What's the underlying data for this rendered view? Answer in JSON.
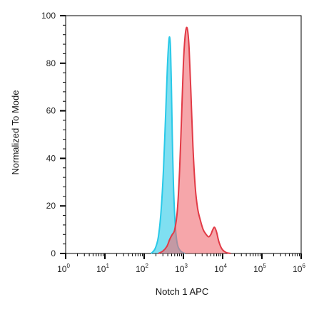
{
  "chart_data": {
    "type": "area",
    "title": "",
    "xlabel": "Notch 1 APC",
    "ylabel": "Normalized To Mode",
    "xscale": "log",
    "xlim": [
      1,
      1000000
    ],
    "ylim": [
      0,
      100
    ],
    "y_ticks": [
      0,
      20,
      40,
      60,
      80,
      100
    ],
    "x_ticks": [
      {
        "base": "10",
        "exp": "0"
      },
      {
        "base": "10",
        "exp": "1"
      },
      {
        "base": "10",
        "exp": "2"
      },
      {
        "base": "10",
        "exp": "3"
      },
      {
        "base": "10",
        "exp": "4"
      },
      {
        "base": "10",
        "exp": "5"
      },
      {
        "base": "10",
        "exp": "6"
      }
    ],
    "grid": false,
    "legend": "none",
    "series": [
      {
        "color": "#29c9e8",
        "fill": "#29c9e8",
        "x": [
          150,
          190,
          230,
          270,
          310,
          350,
          390,
          420,
          445,
          470,
          495,
          520,
          560,
          620,
          700,
          850,
          1100
        ],
        "y": [
          0,
          2,
          7,
          18,
          35,
          57,
          78,
          88,
          91,
          86,
          70,
          50,
          28,
          12,
          4,
          1,
          0
        ]
      },
      {
        "color": "#e23a46",
        "fill": "#f06b72",
        "x": [
          230,
          300,
          380,
          450,
          520,
          600,
          700,
          800,
          900,
          1000,
          1100,
          1200,
          1300,
          1400,
          1550,
          1750,
          2000,
          2300,
          2700,
          3200,
          3800,
          4400,
          5000,
          5600,
          6200,
          7000,
          8000,
          9500,
          12000,
          16000
        ],
        "y": [
          0,
          1,
          3,
          6,
          8,
          10,
          18,
          35,
          58,
          80,
          91,
          95,
          93,
          86,
          68,
          45,
          28,
          19,
          14,
          10,
          8,
          7,
          8,
          10,
          11,
          9,
          5,
          2,
          0.5,
          0
        ]
      }
    ]
  }
}
